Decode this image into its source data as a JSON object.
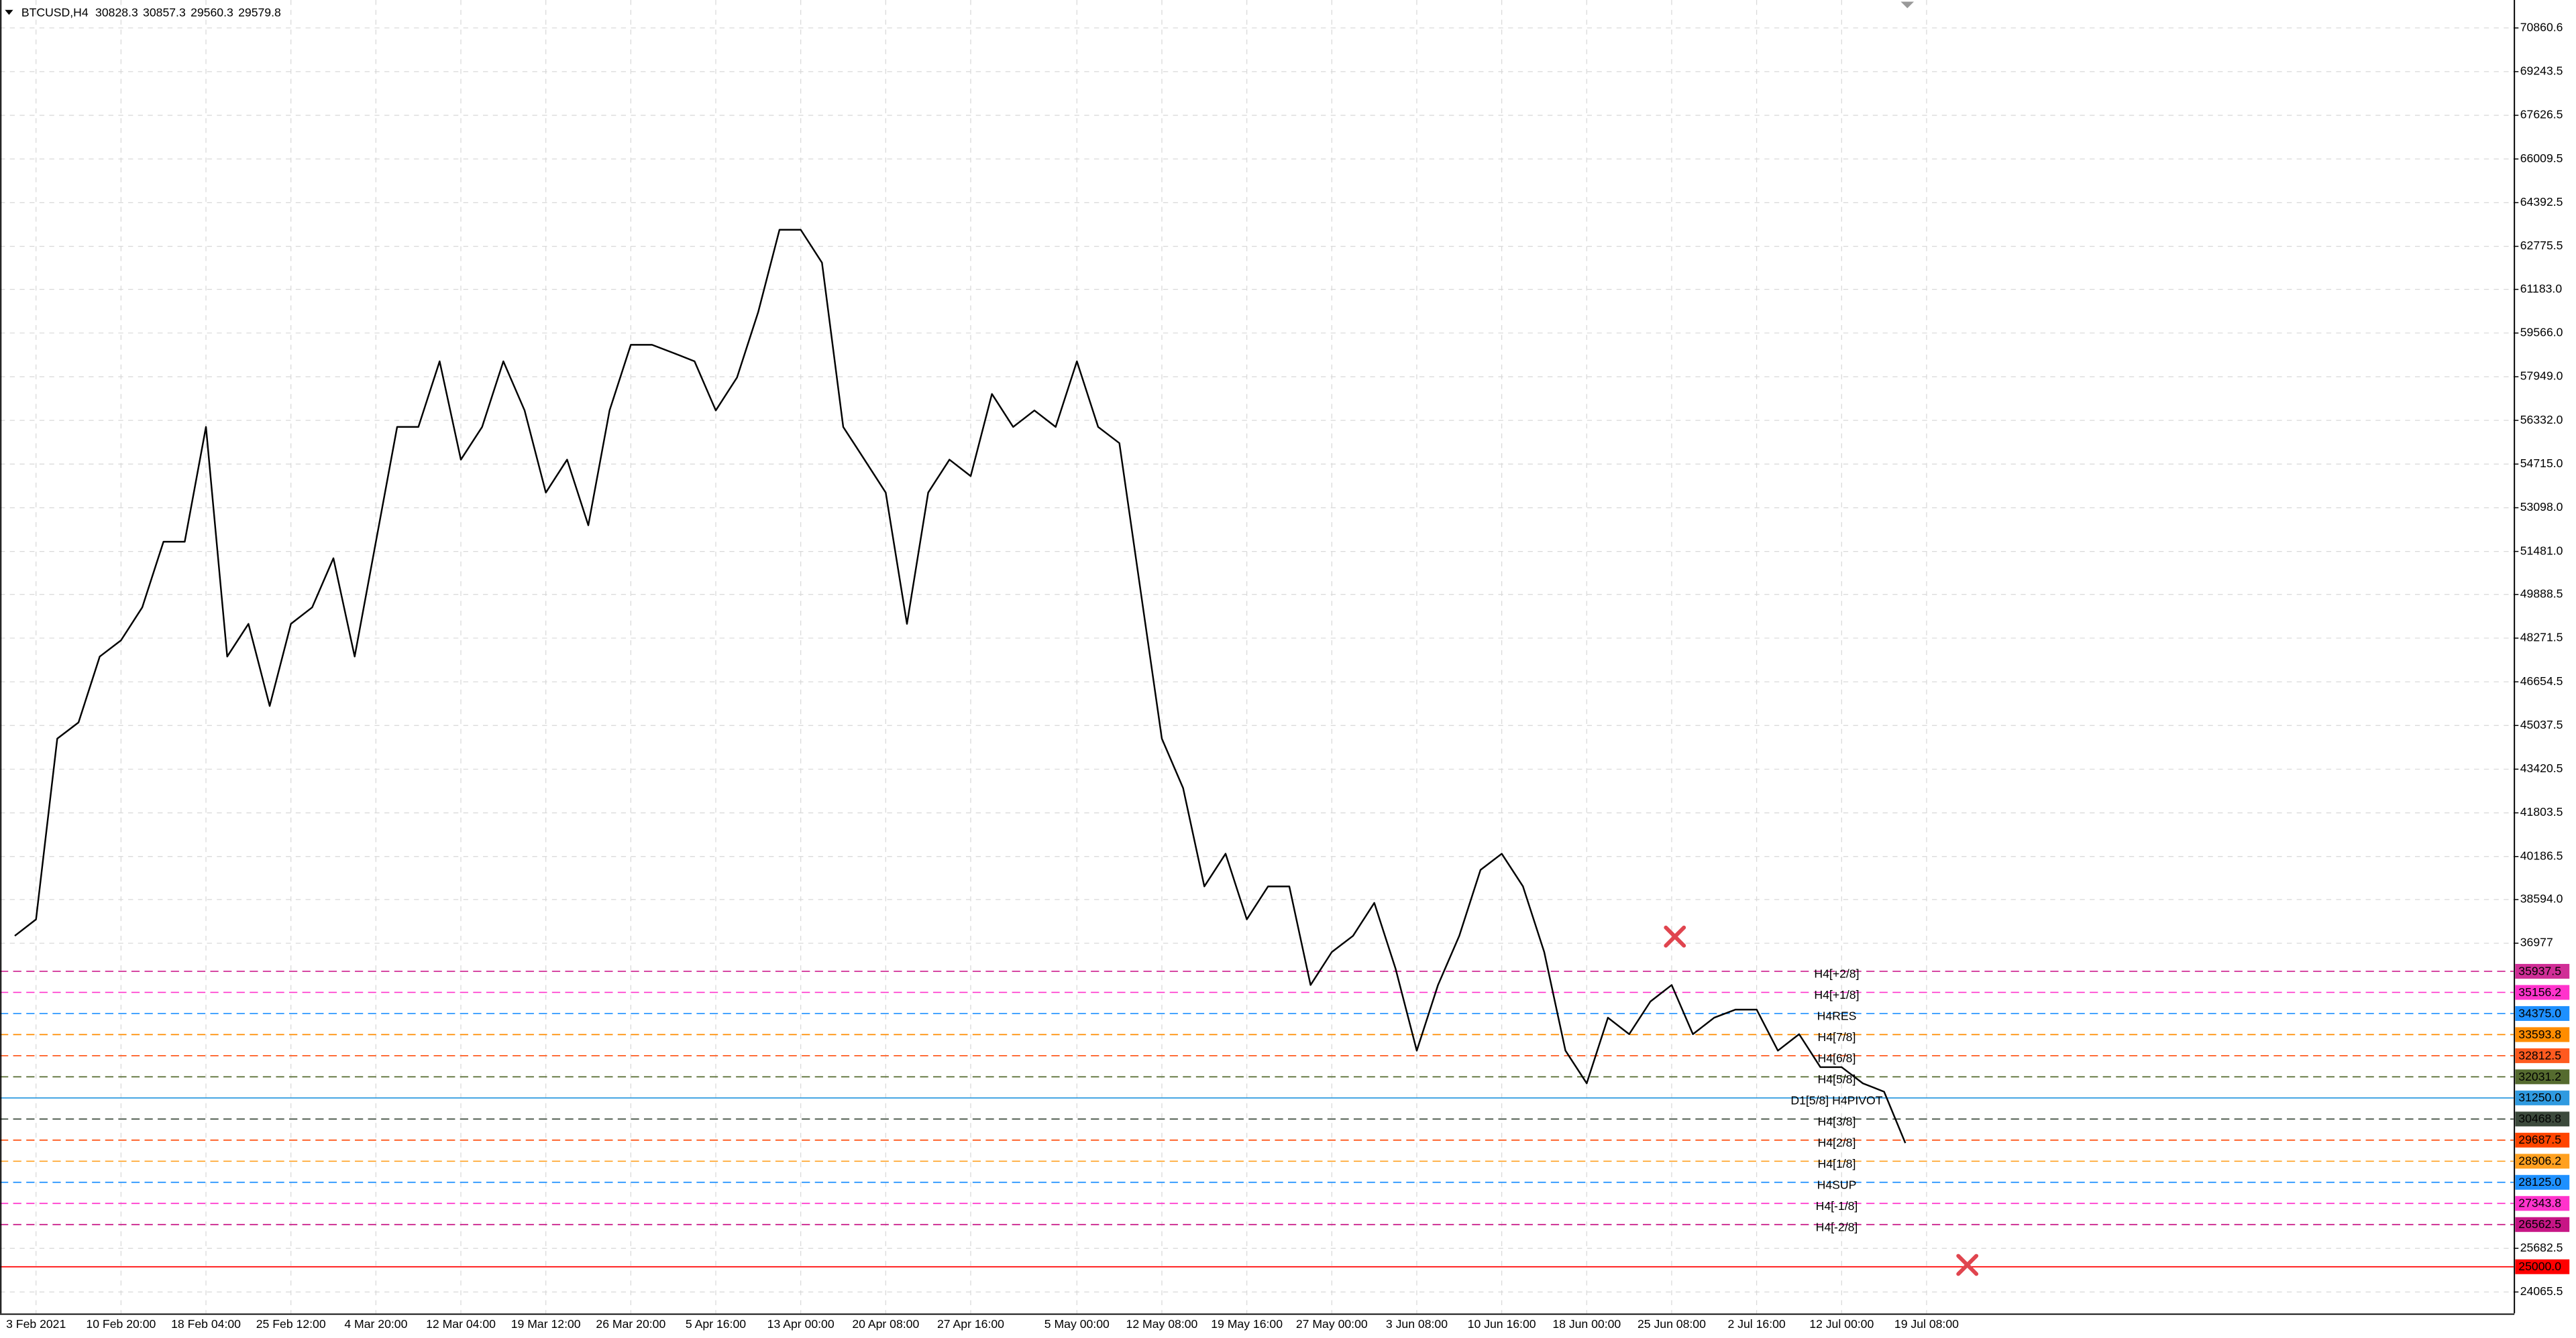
{
  "chart_data": {
    "type": "line",
    "symbol": "BTCUSD,H4",
    "ohlc": [
      30828.3,
      30857.3,
      29560.3,
      29579.8
    ],
    "categories": [
      null,
      "3 Feb 2021",
      null,
      null,
      null,
      "10 Feb 20:00",
      null,
      null,
      null,
      "18 Feb 04:00",
      null,
      null,
      null,
      "25 Feb 12:00",
      null,
      null,
      null,
      "4 Mar 20:00",
      null,
      null,
      null,
      "12 Mar 04:00",
      null,
      null,
      null,
      "19 Mar 12:00",
      null,
      null,
      null,
      "26 Mar 20:00",
      null,
      null,
      null,
      "5 Apr 16:00",
      null,
      null,
      null,
      "13 Apr 00:00",
      null,
      null,
      null,
      "20 Apr 08:00",
      null,
      null,
      null,
      "27 Apr 16:00",
      null,
      null,
      null,
      null,
      "5 May 00:00",
      null,
      null,
      null,
      "12 May 08:00",
      null,
      null,
      null,
      "19 May 16:00",
      null,
      null,
      null,
      "27 May 00:00",
      null,
      null,
      null,
      "3 Jun 08:00",
      null,
      null,
      null,
      "10 Jun 16:00",
      null,
      null,
      null,
      "18 Jun 00:00",
      null,
      null,
      null,
      "25 Jun 08:00",
      null,
      null,
      null,
      "2 Jul 16:00",
      null,
      null,
      null,
      "12 Jul 00:00",
      null,
      null,
      null,
      "19 Jul 08:00"
    ],
    "values": [
      37250,
      37860,
      44550,
      45150,
      47590,
      48190,
      49410,
      51840,
      51840,
      56090,
      47590,
      48800,
      45760,
      48800,
      49410,
      51230,
      47590,
      51840,
      56090,
      56090,
      58520,
      54880,
      56090,
      58520,
      56700,
      53660,
      54880,
      52450,
      56700,
      59130,
      59130,
      58830,
      58520,
      56700,
      57920,
      60350,
      63390,
      63390,
      62170,
      56090,
      54880,
      53660,
      48800,
      53660,
      54880,
      54270,
      57310,
      56090,
      56700,
      56090,
      58520,
      56090,
      55490,
      50020,
      44550,
      42720,
      39080,
      40290,
      37860,
      39080,
      39080,
      35430,
      36650,
      37250,
      38470,
      36040,
      33000,
      35430,
      37250,
      39690,
      40290,
      39080,
      36650,
      33000,
      31790,
      34220,
      33610,
      34820,
      35430,
      33610,
      34220,
      34520,
      34520,
      33000,
      33610,
      32390,
      32390,
      31790,
      31480,
      29579.8,
      null
    ],
    "color": "#000000",
    "ylim": [
      23275,
      71894
    ],
    "yticks": [
      24065.5,
      25682.5,
      36977.0,
      {
        "value": 38594,
        "label": "38594.0"
      },
      40186.5,
      41803.5,
      43420.5,
      45037.5,
      46654.5,
      48271.5,
      49888.5,
      {
        "value": 51481,
        "label": "51481.0"
      },
      {
        "value": 53098,
        "label": "53098.0"
      },
      {
        "value": 54715,
        "label": "54715.0"
      },
      {
        "value": 56332,
        "label": "56332.0"
      },
      {
        "value": 57949,
        "label": "57949.0"
      },
      {
        "value": 59566,
        "label": "59566.0"
      },
      {
        "value": 61183,
        "label": "61183.0"
      },
      62775.5,
      64392.5,
      66009.5,
      67626.5,
      69243.5,
      70860.6
    ],
    "grid": true,
    "levels": [
      {
        "name": "H4[+2/8]",
        "value": 35937.5,
        "color": "#d02e96",
        "dashed": true
      },
      {
        "name": "H4[+1/8]",
        "value": 35156.2,
        "color": "#ff33cc",
        "dashed": true
      },
      {
        "name": "H4RES",
        "value": 34375,
        "label": "34375.0",
        "color": "#1e90ff",
        "dashed": true
      },
      {
        "name": "H4[7/8]",
        "value": 33593.8,
        "color": "#ff8c00",
        "dashed": true
      },
      {
        "name": "H4[6/8]",
        "value": 32812.5,
        "color": "#ff5a1f",
        "dashed": true
      },
      {
        "name": "H4[5/8]",
        "value": 32031.2,
        "color": "#556b2f",
        "dashed": true
      },
      {
        "name": "D1[5/8] H4PIVOT",
        "value": 31250,
        "label": "31250.0",
        "color": "#2f9ae0",
        "dashed": false
      },
      {
        "name": "H4[3/8]",
        "value": 30468.8,
        "color": "#3c4a3c",
        "dashed": true
      },
      {
        "name": "H4[2/8]",
        "value": 29687.5,
        "color": "#ff4500",
        "dashed": true
      },
      {
        "name": "H4[1/8]",
        "value": 28906.2,
        "color": "#ffa020",
        "dashed": true
      },
      {
        "name": "H4SUP",
        "value": 28125,
        "label": "28125.0",
        "color": "#1e90ff",
        "dashed": true
      },
      {
        "name": "H4[-1/8]",
        "value": 27343.8,
        "color": "#ff33cc",
        "dashed": true
      },
      {
        "name": "H4[-2/8]",
        "value": 26562.5,
        "color": "#c71585",
        "dashed": true
      },
      {
        "value": 25000,
        "label": "25000.0",
        "color": "#ff0000",
        "dashed": false
      }
    ]
  }
}
